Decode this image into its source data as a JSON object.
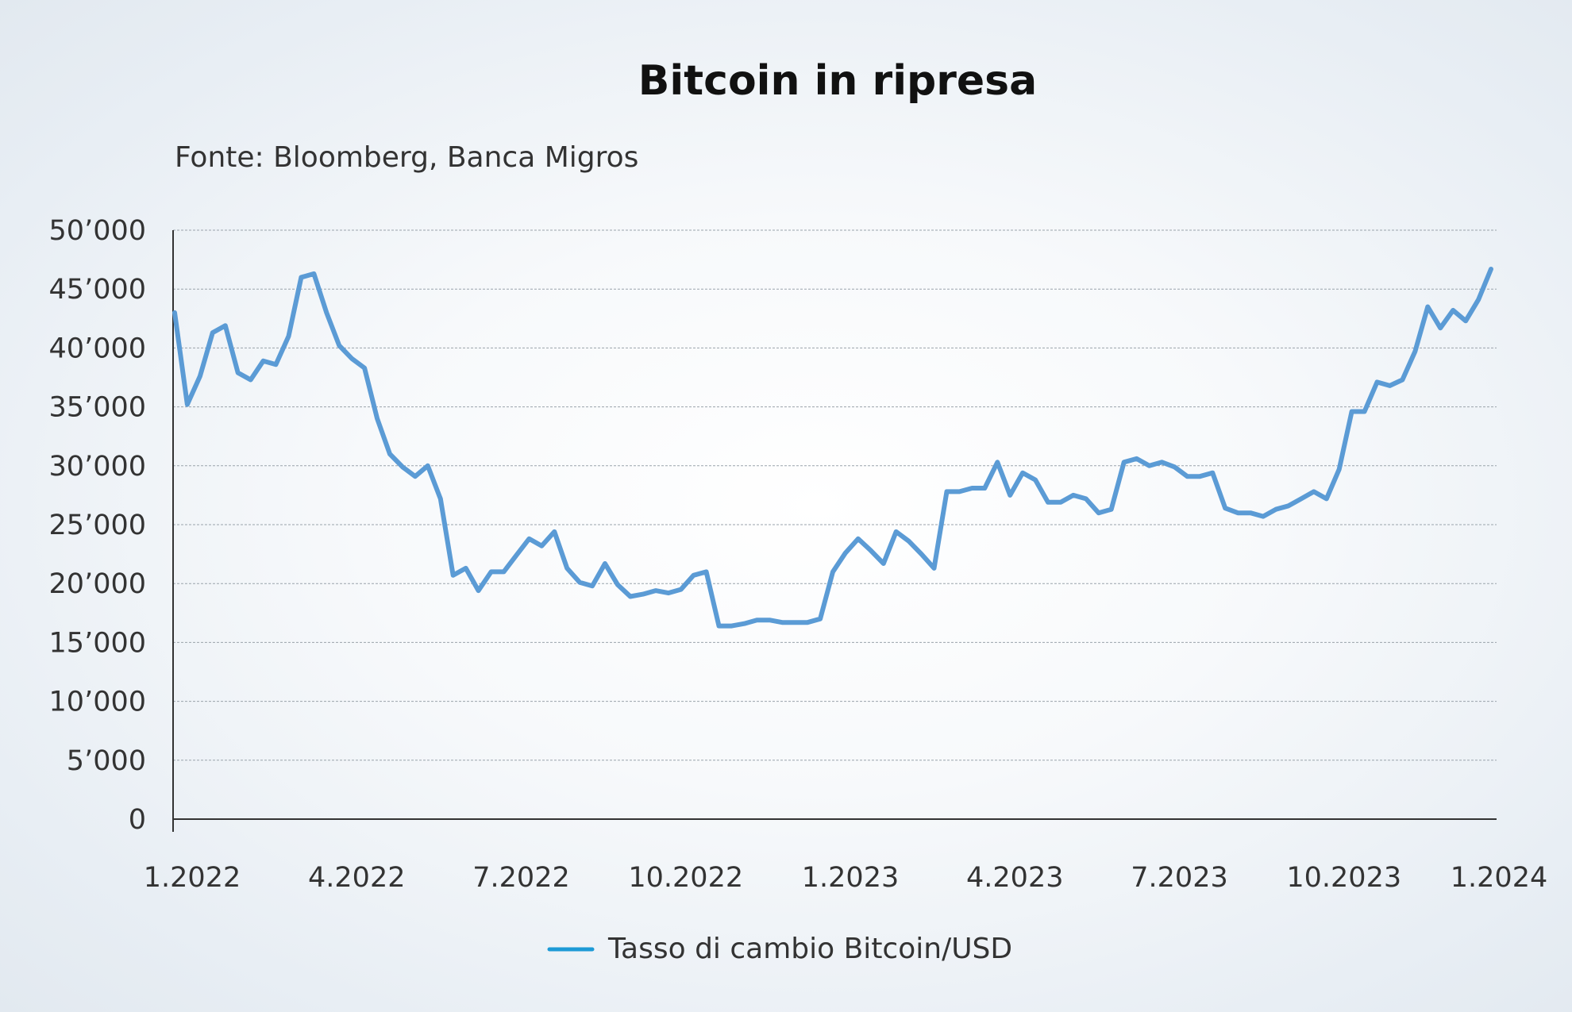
{
  "chart_data": {
    "type": "line",
    "title": "Bitcoin in ripresa",
    "subtitle": "Fonte: Bloomberg, Banca Migros",
    "ylim": [
      0,
      50000
    ],
    "y_ticks": [
      0,
      5000,
      10000,
      15000,
      20000,
      25000,
      30000,
      35000,
      40000,
      45000,
      50000
    ],
    "y_tick_labels": [
      "0",
      "5’000",
      "10’000",
      "15’000",
      "20’000",
      "25’000",
      "30’000",
      "35’000",
      "40’000",
      "45’000",
      "50’000"
    ],
    "x_tick_labels": [
      "1.2022",
      "4.2022",
      "7.2022",
      "10.2022",
      "1.2023",
      "4.2023",
      "7.2023",
      "10.2023",
      "1.2024"
    ],
    "grid": true,
    "legend_position": "bottom-center",
    "colors": {
      "series": "#5b9bd5",
      "legend_marker": "#1d9ad6"
    },
    "series": [
      {
        "name": "Tasso di cambio Bitcoin/USD",
        "frequency": "weekly",
        "start": "1.2022",
        "end": "1.2024",
        "values": [
          43000,
          35200,
          37600,
          41300,
          41900,
          37900,
          37300,
          38900,
          38600,
          41000,
          46000,
          46300,
          43000,
          40200,
          39100,
          38300,
          34000,
          31000,
          29900,
          29100,
          30000,
          27200,
          20700,
          21300,
          19400,
          21000,
          21000,
          22400,
          23800,
          23200,
          24400,
          21300,
          20100,
          19800,
          21700,
          19900,
          18900,
          19100,
          19400,
          19200,
          19500,
          20700,
          21000,
          16400,
          16400,
          16600,
          16900,
          16900,
          16700,
          16700,
          16700,
          17000,
          21000,
          22600,
          23800,
          22800,
          21700,
          24400,
          23600,
          22500,
          21300,
          27800,
          27800,
          28100,
          28100,
          30300,
          27500,
          29400,
          28800,
          26900,
          26900,
          27500,
          27200,
          26000,
          26300,
          30300,
          30600,
          30000,
          30300,
          29900,
          29100,
          29100,
          29400,
          26400,
          26000,
          26000,
          25700,
          26300,
          26600,
          27200,
          27800,
          27200,
          29700,
          34600,
          34600,
          37100,
          36800,
          37300,
          39700,
          43500,
          41700,
          43200,
          42300,
          44100,
          46700
        ]
      }
    ]
  }
}
